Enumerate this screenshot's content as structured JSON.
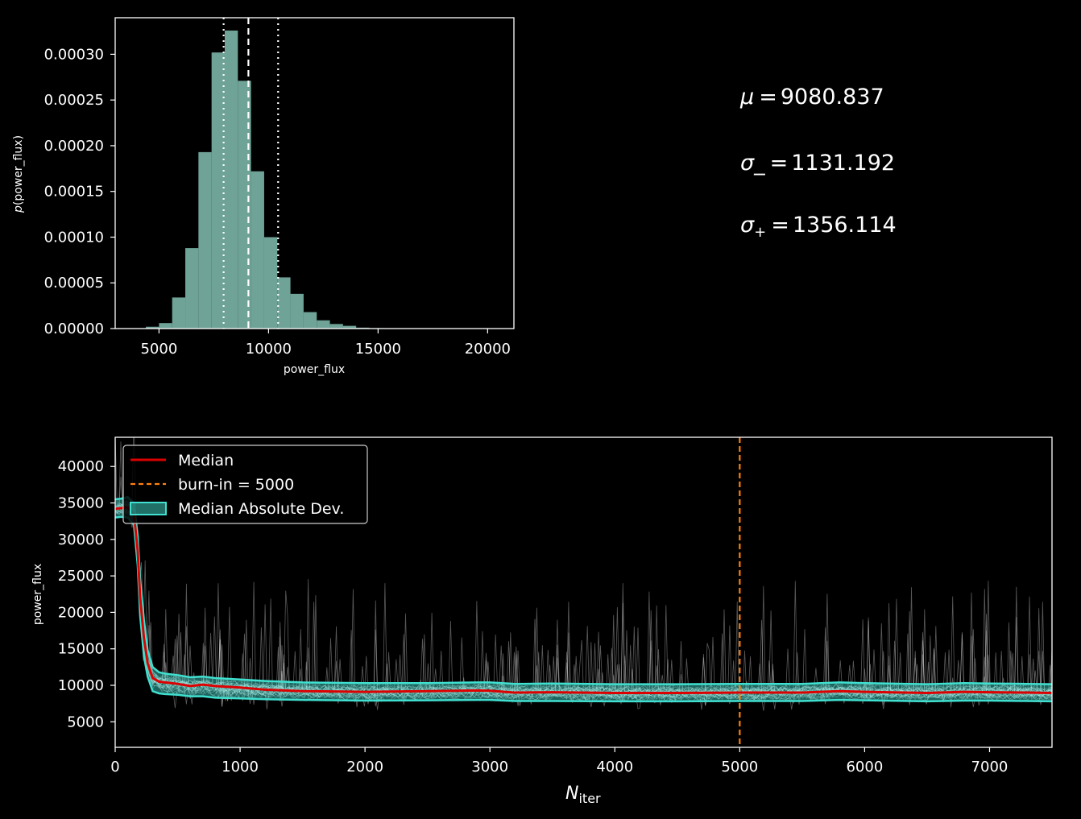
{
  "chart_data": [
    {
      "type": "bar",
      "subtype": "histogram",
      "xlabel": "power_flux",
      "ylabel": "p(power_flux)",
      "xlim": [
        3000,
        21200
      ],
      "ylim": [
        0,
        0.00034
      ],
      "xticks": [
        5000,
        10000,
        15000,
        20000
      ],
      "xtick_labels": [
        "5000",
        "10000",
        "15000",
        "20000"
      ],
      "yticks": [
        0,
        5e-05,
        0.0001,
        0.00015,
        0.0002,
        0.00025,
        0.0003
      ],
      "ytick_labels": [
        "0.00000",
        "0.00005",
        "0.00010",
        "0.00015",
        "0.00020",
        "0.00025",
        "0.00030"
      ],
      "bin_edges": [
        4400,
        5000,
        5600,
        6200,
        6800,
        7400,
        8000,
        8600,
        9200,
        9800,
        10400,
        11000,
        11600,
        12200,
        12800,
        13400,
        14000,
        14600,
        15200,
        15800,
        16400,
        17000,
        17600,
        18200,
        18800,
        19400,
        20000
      ],
      "values": [
        2e-06,
        6e-06,
        3.4e-05,
        8.8e-05,
        0.000193,
        0.000302,
        0.000326,
        0.000271,
        0.000172,
        0.0001,
        5.6e-05,
        3.8e-05,
        1.8e-05,
        9e-06,
        5e-06,
        3e-06,
        1e-06,
        5e-07,
        3e-07,
        2e-07,
        1e-07,
        1e-07,
        1e-07,
        1e-07,
        1e-07,
        1e-07
      ],
      "bar_color": "#6fa397",
      "median_line": 9080.837,
      "lower_line": 7949.645,
      "upper_line": 10436.951
    },
    {
      "type": "line",
      "xlabel_main": "N",
      "xlabel_sub": "iter",
      "ylabel": "power_flux",
      "xlim": [
        0,
        7500
      ],
      "ylim": [
        1500,
        44000
      ],
      "xticks": [
        0,
        1000,
        2000,
        3000,
        4000,
        5000,
        6000,
        7000
      ],
      "xtick_labels": [
        "0",
        "1000",
        "2000",
        "3000",
        "4000",
        "5000",
        "6000",
        "7000"
      ],
      "yticks": [
        5000,
        10000,
        15000,
        20000,
        25000,
        30000,
        35000,
        40000
      ],
      "ytick_labels": [
        "5000",
        "10000",
        "15000",
        "20000",
        "25000",
        "30000",
        "35000",
        "40000"
      ],
      "burn_in": 5000,
      "series": [
        {
          "name": "Median",
          "color": "#dd0000",
          "x": [
            0,
            50,
            100,
            150,
            180,
            200,
            230,
            260,
            300,
            350,
            400,
            500,
            600,
            700,
            800,
            1000,
            1200,
            1500,
            2000,
            2500,
            2900,
            3000,
            3200,
            3500,
            4000,
            4500,
            5000,
            5500,
            5800,
            6000,
            6500,
            6800,
            7000,
            7300,
            7500
          ],
          "values": [
            34200,
            34300,
            34400,
            33500,
            28500,
            22000,
            16500,
            13000,
            11000,
            10500,
            10400,
            10200,
            9900,
            10100,
            9900,
            9700,
            9400,
            9200,
            9100,
            9200,
            9300,
            9250,
            9000,
            9050,
            8950,
            8950,
            9000,
            9000,
            9200,
            9100,
            8950,
            9100,
            9050,
            9000,
            8950
          ]
        },
        {
          "name": "Median Absolute Dev.",
          "color": "#40e0d0",
          "x": [
            0,
            50,
            100,
            150,
            180,
            200,
            230,
            260,
            300,
            350,
            400,
            500,
            600,
            700,
            800,
            1000,
            1200,
            1500,
            2000,
            2500,
            2900,
            3000,
            3200,
            3500,
            4000,
            4500,
            5000,
            5500,
            5800,
            6000,
            6500,
            6800,
            7000,
            7300,
            7500
          ],
          "upper": [
            35500,
            35600,
            35800,
            35000,
            30500,
            24500,
            19000,
            14800,
            12500,
            11800,
            11600,
            11400,
            11100,
            11200,
            11000,
            10800,
            10600,
            10400,
            10300,
            10300,
            10400,
            10400,
            10200,
            10250,
            10150,
            10150,
            10200,
            10200,
            10400,
            10300,
            10150,
            10300,
            10250,
            10200,
            10150
          ],
          "lower": [
            33000,
            33100,
            33000,
            32000,
            26500,
            19500,
            14000,
            11200,
            9200,
            8900,
            8800,
            8700,
            8500,
            8500,
            8300,
            8200,
            8100,
            8000,
            7900,
            7950,
            8000,
            8000,
            7850,
            7850,
            7800,
            7800,
            7850,
            7850,
            8000,
            7950,
            7800,
            7900,
            7900,
            7850,
            7800
          ]
        }
      ],
      "legend": [
        {
          "label": "Median",
          "color": "#dd0000",
          "style": "line"
        },
        {
          "label": "burn-in = 5000",
          "color": "#ff7f0e",
          "style": "dashed"
        },
        {
          "label": "Median Absolute Dev.",
          "color": "#40e0d0",
          "style": "patch"
        }
      ],
      "legend_position": "upper-left",
      "walker_trace_color": "#ffffff",
      "burn_in_color": "#ff7f0e"
    }
  ],
  "stats": {
    "mu_symbol": "μ",
    "mu_value": "9080.837",
    "sigma_minus_symbol": "σ",
    "sigma_minus_sub": "_",
    "sigma_minus_value": "1131.192",
    "sigma_plus_symbol": "σ",
    "sigma_plus_sub": "+",
    "sigma_plus_value": "1356.114"
  }
}
